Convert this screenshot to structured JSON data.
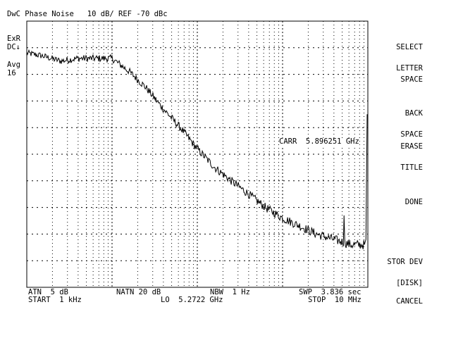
{
  "header": {
    "title": "DwC Phase Noise   10 dB/ REF -70 dBc"
  },
  "left_status": {
    "line1": "ExR",
    "line2": "DC↓",
    "line3": "Avg",
    "line4": "16"
  },
  "annotation": {
    "carr": "CARR  5.896251 GHz"
  },
  "footer": {
    "atn": "ATN  5 dB",
    "natn": "NATN 20 dB",
    "nbw": "NBW  1 Hz",
    "swp": "SWP  3.836 sec",
    "start": "START  1 kHz",
    "lo": "LO  5.2722 GHz",
    "stop": "STOP  10 MHz"
  },
  "softkeys": [
    {
      "line1": "SELECT",
      "line2": "LETTER"
    },
    {
      "line1": "SPACE",
      "line2": ""
    },
    {
      "line1": "BACK",
      "line2": "SPACE"
    },
    {
      "line1": "ERASE",
      "line2": "TITLE"
    },
    {
      "line1": "DONE",
      "line2": ""
    },
    {
      "line1": "STOR DEV",
      "line2": "[DISK]"
    },
    {
      "line1": "CANCEL",
      "line2": ""
    }
  ],
  "colors": {
    "trace": "#000000",
    "grid": "#000000",
    "background": "#ffffff"
  },
  "chart_data": {
    "type": "line",
    "title": "DwC Phase Noise   10 dB/ REF -70 dBc",
    "x_scale": "log",
    "xlim": [
      1000,
      10000000
    ],
    "ylim": [
      -170,
      -70
    ],
    "series": [
      {
        "x": [
          1000,
          1500,
          2500,
          4000,
          6300,
          10000,
          16000,
          25000,
          40000,
          63000,
          100000,
          160000,
          250000,
          400000,
          630000,
          1000000,
          1600000,
          2500000,
          4000000,
          6300000,
          9300000,
          10000000
        ],
        "y": [
          -82,
          -83,
          -85,
          -84,
          -84,
          -84,
          -89,
          -95,
          -103,
          -110,
          -118,
          -125,
          -130,
          -135,
          -140,
          -144,
          -147,
          -150,
          -152,
          -154,
          -154,
          -105
        ]
      }
    ]
  }
}
